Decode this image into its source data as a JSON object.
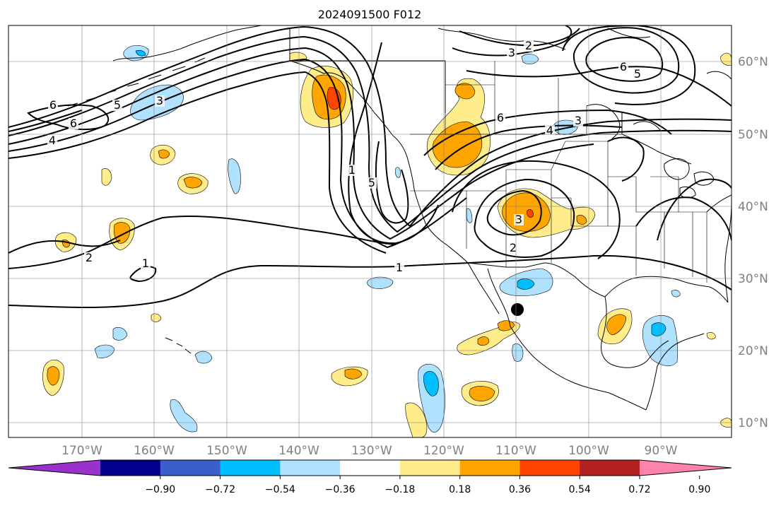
{
  "title": "2024091500 F012",
  "longitude_labels": [
    "170°W",
    "160°W",
    "150°W",
    "140°W",
    "130°W",
    "120°W",
    "110°W",
    "100°W",
    "90°W"
  ],
  "latitude_labels": [
    "10°N",
    "20°N",
    "30°N",
    "40°N",
    "50°N",
    "60°N"
  ],
  "colorbar": {
    "tick_labels": [
      "−0.90",
      "−0.72",
      "−0.54",
      "−0.36",
      "−0.18",
      "0.18",
      "0.36",
      "0.54",
      "0.72",
      "0.90"
    ],
    "colors": [
      "#9932cc",
      "#00008b",
      "#3a5fcd",
      "#00bfff",
      "#b0e2ff",
      "#ffffff",
      "#ffec8b",
      "#ffa500",
      "#ff4500",
      "#b22222",
      "#ff82ab"
    ]
  },
  "contour_labels": [
    {
      "id": "pac-6a",
      "text": "6"
    },
    {
      "id": "pac-6b",
      "text": "6"
    },
    {
      "id": "pac-4",
      "text": "4"
    },
    {
      "id": "pac-3",
      "text": "3"
    },
    {
      "id": "pac-5",
      "text": "5"
    },
    {
      "id": "coast-1",
      "text": "1"
    },
    {
      "id": "coast-5",
      "text": "5"
    },
    {
      "id": "rockies-6",
      "text": "6"
    },
    {
      "id": "rockies-4",
      "text": "4"
    },
    {
      "id": "great-basin-3",
      "text": "3"
    },
    {
      "id": "great-basin-2",
      "text": "2"
    },
    {
      "id": "subtrop-1",
      "text": "1"
    },
    {
      "id": "subtrop-2",
      "text": "2"
    },
    {
      "id": "subtrop-1b",
      "text": "1"
    },
    {
      "id": "canada-3",
      "text": "3"
    },
    {
      "id": "canada-2",
      "text": "2"
    },
    {
      "id": "hudson-6",
      "text": "6"
    },
    {
      "id": "hudson-5",
      "text": "5"
    },
    {
      "id": "plains-3",
      "text": "3"
    }
  ]
}
